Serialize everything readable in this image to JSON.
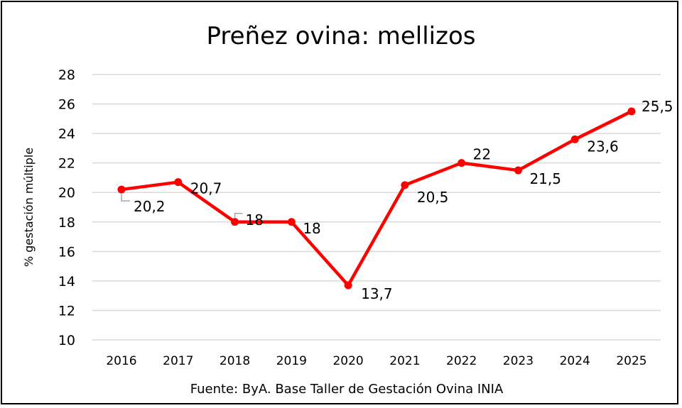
{
  "chart_data": {
    "type": "line",
    "title": "Preñez ovina: mellizos",
    "xlabel": "",
    "ylabel": "% gestación múltiple",
    "source": "Fuente: ByA. Base Taller de Gestación Ovina INIA",
    "categories": [
      "2016",
      "2017",
      "2018",
      "2019",
      "2020",
      "2021",
      "2022",
      "2023",
      "2024",
      "2025"
    ],
    "series": [
      {
        "name": "mellizos",
        "values": [
          20.2,
          20.7,
          18,
          18,
          13.7,
          20.5,
          22,
          21.5,
          23.6,
          25.5
        ],
        "labels": [
          "20,2",
          "20,7",
          "18",
          "18",
          "13,7",
          "20,5",
          "22",
          "21,5",
          "23,6",
          "25,5"
        ],
        "color": "#ff0000"
      }
    ],
    "ylim": [
      10,
      28
    ],
    "yticks": [
      "10",
      "12",
      "14",
      "16",
      "18",
      "20",
      "22",
      "24",
      "26",
      "28"
    ],
    "grid": true,
    "legend": "none"
  }
}
